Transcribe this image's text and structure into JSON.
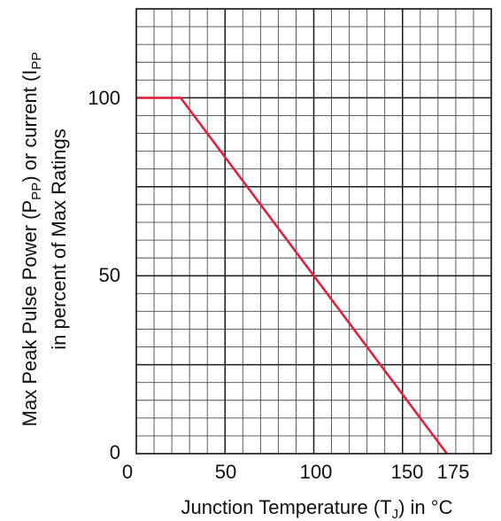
{
  "chart_data": {
    "type": "line",
    "xlabel": {
      "before": "Junction Temperature (T",
      "sub": "J",
      "after": ") in °C"
    },
    "ylabel": {
      "line1": {
        "part1": "Max Peak Pulse Power (P",
        "sub1": "PP",
        "part2": ") or current (I",
        "sub2": "PP"
      },
      "line2": "in percent of Max Ratings"
    },
    "xlim": [
      0,
      200
    ],
    "ylim": [
      0,
      125
    ],
    "x_ticks": [
      0,
      50,
      100,
      150,
      175
    ],
    "y_ticks": [
      0,
      50,
      100
    ],
    "x_tick_labels": [
      "0",
      "50",
      "100",
      "150",
      "175"
    ],
    "y_tick_labels": [
      "0",
      "50",
      "100"
    ],
    "grid": true,
    "grid_minor_step": {
      "x": 10,
      "y": 5
    },
    "grid_major_step": {
      "x": 50,
      "y": 25
    },
    "series": [
      {
        "x": [
          0,
          25,
          175
        ],
        "y": [
          100,
          100,
          0
        ],
        "color": "#e0203c"
      }
    ]
  }
}
